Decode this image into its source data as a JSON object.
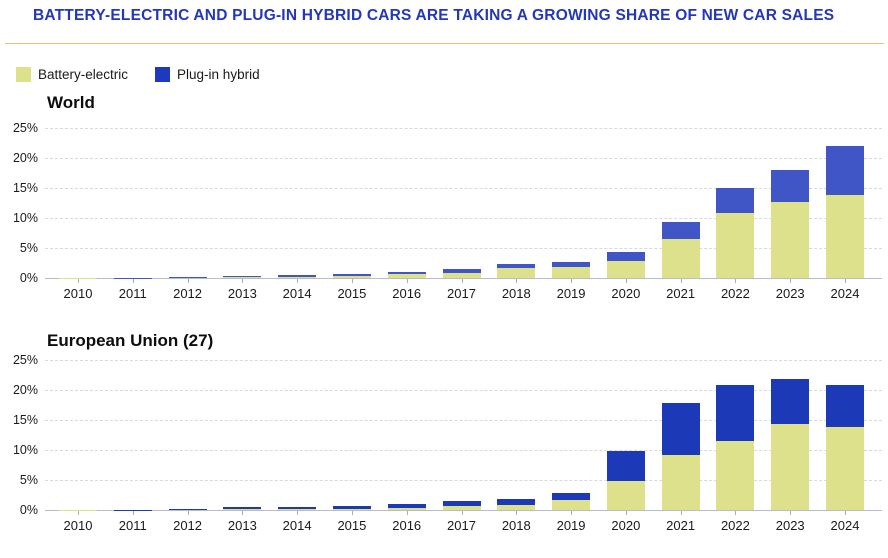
{
  "page": {
    "title": "BATTERY-ELECTRIC AND PLUG-IN HYBRID CARS ARE TAKING A GROWING SHARE OF NEW CAR SALES",
    "title_color": "#2337b8",
    "rule_color": "#d6cb74"
  },
  "legend": {
    "items": [
      {
        "label": "Battery-electric",
        "color": "#dde18c"
      },
      {
        "label": "Plug-in hybrid",
        "color": "#1d3abf"
      }
    ]
  },
  "chart_data": [
    {
      "type": "bar",
      "stacked": true,
      "title": "World",
      "categories": [
        "2010",
        "2011",
        "2012",
        "2013",
        "2014",
        "2015",
        "2016",
        "2017",
        "2018",
        "2019",
        "2020",
        "2021",
        "2022",
        "2023",
        "2024"
      ],
      "series": [
        {
          "name": "Battery-electric",
          "color": "#dde18c",
          "values": [
            0.02,
            0.04,
            0.1,
            0.18,
            0.25,
            0.4,
            0.6,
            0.8,
            1.6,
            1.9,
            2.9,
            6.5,
            10.8,
            12.6,
            13.8
          ]
        },
        {
          "name": "Plug-in hybrid",
          "color": "#4156c6",
          "values": [
            0.01,
            0.03,
            0.08,
            0.12,
            0.2,
            0.25,
            0.35,
            0.7,
            0.8,
            0.8,
            1.4,
            2.8,
            4.2,
            5.4,
            8.2
          ]
        }
      ],
      "xlabel": "",
      "ylabel": "",
      "ylim": [
        0,
        25
      ],
      "yticks": [
        0,
        5,
        10,
        15,
        20,
        25
      ],
      "ytick_suffix": "%",
      "grid": true,
      "legend_position": "top-left"
    },
    {
      "type": "bar",
      "stacked": true,
      "title": "European Union (27)",
      "categories": [
        "2010",
        "2011",
        "2012",
        "2013",
        "2014",
        "2015",
        "2016",
        "2017",
        "2018",
        "2019",
        "2020",
        "2021",
        "2022",
        "2023",
        "2024"
      ],
      "series": [
        {
          "name": "Battery-electric",
          "color": "#dde18c",
          "values": [
            0.02,
            0.05,
            0.1,
            0.15,
            0.2,
            0.25,
            0.3,
            0.6,
            0.8,
            1.6,
            4.9,
            9.1,
            11.5,
            14.4,
            13.9
          ]
        },
        {
          "name": "Plug-in hybrid",
          "color": "#1c39b8",
          "values": [
            0.01,
            0.03,
            0.06,
            0.3,
            0.35,
            0.45,
            0.7,
            0.9,
            1.0,
            1.3,
            5.0,
            8.8,
            9.4,
            7.5,
            7.0
          ]
        }
      ],
      "xlabel": "",
      "ylabel": "",
      "ylim": [
        0,
        25
      ],
      "yticks": [
        0,
        5,
        10,
        15,
        20,
        25
      ],
      "ytick_suffix": "%",
      "grid": true,
      "legend_position": "top-left"
    }
  ]
}
